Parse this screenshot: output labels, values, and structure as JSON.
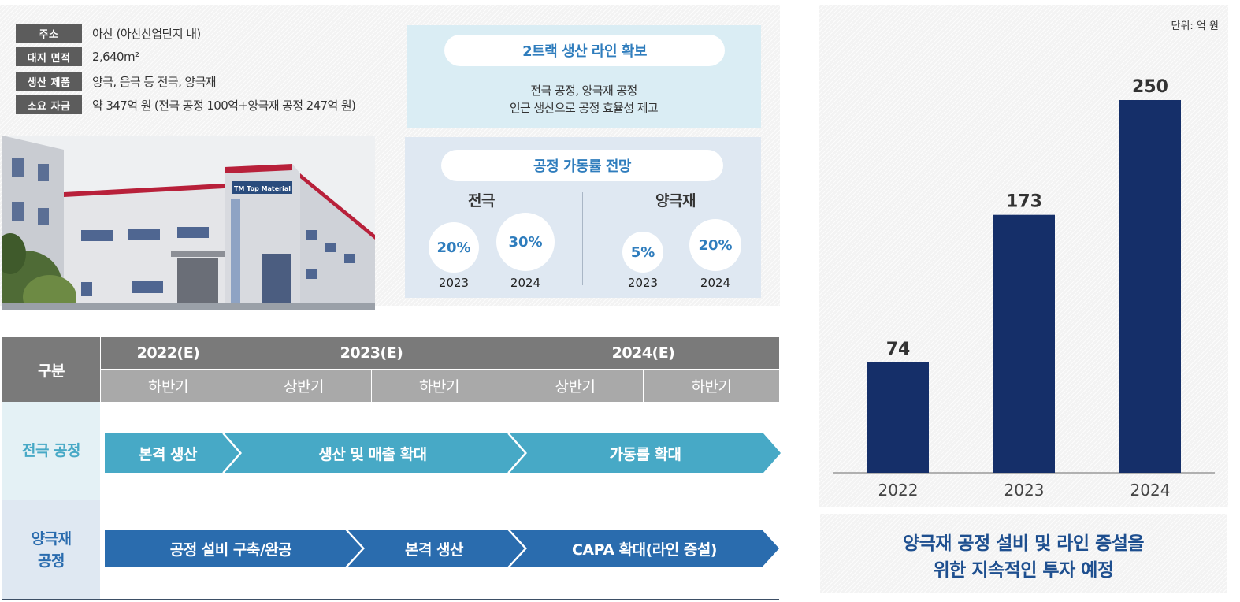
{
  "info": {
    "rows": [
      {
        "key": "주소",
        "value": "아산 (아산산업단지 내)"
      },
      {
        "key": "대지 면적",
        "value": "2,640m²"
      },
      {
        "key": "생산 제품",
        "value": "양극, 음극 등 전극, 양극재"
      },
      {
        "key": "소요 자금",
        "value": "약 347억 원 (전극 공정 100억+양극재 공정 247억 원)"
      }
    ],
    "building_sign": "TM Top Material"
  },
  "track_box": {
    "title": "2트랙 생산 라인 확보",
    "desc_line1": "전극 공정, 양극재 공정",
    "desc_line2": "인근 생산으로 공정 효율성 제고"
  },
  "util_box": {
    "title": "공정 가동률 전망",
    "groups": [
      {
        "name": "전극",
        "items": [
          {
            "pct": "20%",
            "year": "2023"
          },
          {
            "pct": "30%",
            "year": "2024"
          }
        ]
      },
      {
        "name": "양극재",
        "items": [
          {
            "pct": "5%",
            "year": "2023"
          },
          {
            "pct": "20%",
            "year": "2024"
          }
        ]
      }
    ]
  },
  "schedule": {
    "corner": "구분",
    "years": [
      "2022(E)",
      "2023(E)",
      "2024(E)"
    ],
    "halves": [
      "하반기",
      "상반기",
      "하반기",
      "상반기",
      "하반기"
    ],
    "rows": [
      {
        "label_line1": "전극 공정",
        "label_line2": "",
        "segments": [
          "본격 생산",
          "생산 및 매출 확대",
          "가동률 확대"
        ]
      },
      {
        "label_line1": "양극재",
        "label_line2": "공정",
        "segments": [
          "공정 설비 구축/완공",
          "본격 생산",
          "CAPA 확대(라인 증설)"
        ]
      }
    ],
    "colors": {
      "electrode": "#47a9c6",
      "cathode": "#2a6cae"
    }
  },
  "chart_data": {
    "type": "bar",
    "unit": "단위: 억 원",
    "categories": [
      "2022",
      "2023",
      "2024"
    ],
    "values": [
      74,
      173,
      250
    ],
    "ylim": [
      0,
      250
    ],
    "bar_color": "#152f69",
    "grid": false
  },
  "summary": {
    "line1": "양극재 공정 설비 및 라인 증설을",
    "line2": "위한 지속적인 투자 예정"
  }
}
